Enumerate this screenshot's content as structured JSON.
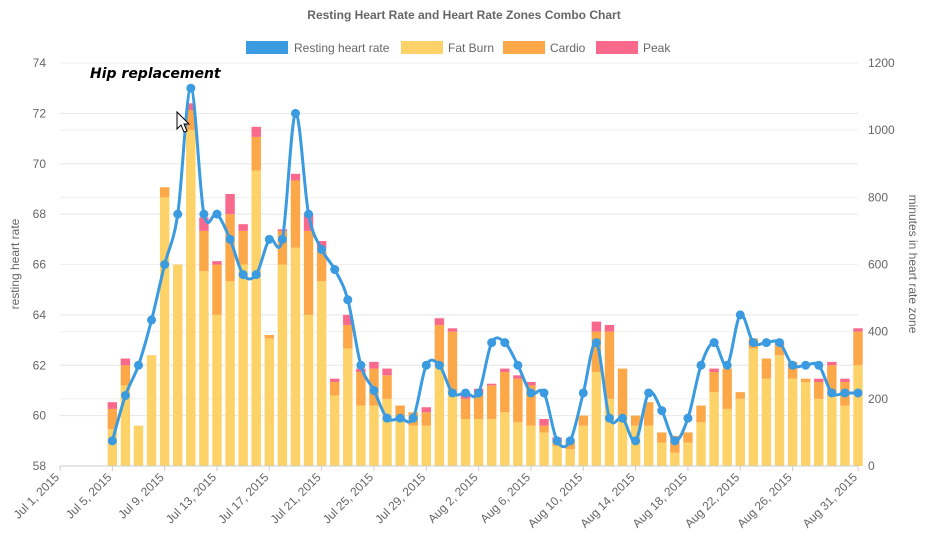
{
  "chart_data": {
    "type": "bar",
    "title": "Resting Heart Rate and Heart Rate Zones Combo Chart",
    "ylabel_left": "resting heart rate",
    "ylabel_right": "minutes in heart rate zone",
    "ylim_left": [
      58,
      74
    ],
    "ylim_right": [
      0,
      1200
    ],
    "yticks_left": [
      "58",
      "60",
      "62",
      "64",
      "66",
      "68",
      "70",
      "72",
      "74"
    ],
    "yticks_right": [
      "0",
      "200",
      "400",
      "600",
      "800",
      "1000",
      "1200"
    ],
    "xticks": [
      "Jul 1, 2015",
      "Jul 5, 2015",
      "Jul 9, 2015",
      "Jul 13, 2015",
      "Jul 17, 2015",
      "Jul 21, 2015",
      "Jul 25, 2015",
      "Jul 29, 2015",
      "Aug 2, 2015",
      "Aug 6, 2015",
      "Aug 10, 2015",
      "Aug 14, 2015",
      "Aug 18, 2015",
      "Aug 22, 2015",
      "Aug 26, 2015",
      "Aug 31, 2015"
    ],
    "x_first": "2015-07-01",
    "x_last": "2015-08-31",
    "annotation": {
      "text": "Hip replacement",
      "date": "2015-07-11"
    },
    "legend": [
      {
        "name": "Resting heart rate",
        "color": "#3a9be0"
      },
      {
        "name": "Fat Burn",
        "color": "#fdd268"
      },
      {
        "name": "Cardio",
        "color": "#fca849"
      },
      {
        "name": "Peak",
        "color": "#f9698c"
      }
    ],
    "legend_position": "top",
    "grid": true,
    "dates": [
      "2015-07-05",
      "2015-07-06",
      "2015-07-07",
      "2015-07-08",
      "2015-07-09",
      "2015-07-10",
      "2015-07-11",
      "2015-07-12",
      "2015-07-13",
      "2015-07-14",
      "2015-07-15",
      "2015-07-16",
      "2015-07-17",
      "2015-07-18",
      "2015-07-19",
      "2015-07-20",
      "2015-07-21",
      "2015-07-22",
      "2015-07-23",
      "2015-07-24",
      "2015-07-25",
      "2015-07-26",
      "2015-07-27",
      "2015-07-28",
      "2015-07-29",
      "2015-07-30",
      "2015-07-31",
      "2015-08-01",
      "2015-08-02",
      "2015-08-03",
      "2015-08-04",
      "2015-08-05",
      "2015-08-06",
      "2015-08-07",
      "2015-08-08",
      "2015-08-09",
      "2015-08-10",
      "2015-08-11",
      "2015-08-12",
      "2015-08-13",
      "2015-08-14",
      "2015-08-15",
      "2015-08-16",
      "2015-08-17",
      "2015-08-18",
      "2015-08-19",
      "2015-08-20",
      "2015-08-21",
      "2015-08-22",
      "2015-08-23",
      "2015-08-24",
      "2015-08-25",
      "2015-08-26",
      "2015-08-27",
      "2015-08-28",
      "2015-08-29",
      "2015-08-30",
      "2015-08-31"
    ],
    "series": [
      {
        "name": "Resting heart rate",
        "type": "line",
        "axis": "left",
        "values": [
          59,
          60.8,
          62,
          63.8,
          66,
          68,
          73,
          68,
          68,
          67,
          65.6,
          65.6,
          67,
          67,
          72,
          68,
          66.6,
          65.8,
          64.6,
          62,
          61,
          59.9,
          59.9,
          59.9,
          62,
          62,
          60.9,
          60.9,
          60.9,
          62.9,
          62.9,
          62,
          60.9,
          60.9,
          59,
          59,
          60.9,
          62.9,
          59.9,
          59.9,
          59,
          60.9,
          60.2,
          59,
          59.9,
          62,
          62.9,
          62,
          64,
          62.9,
          62.9,
          62.9,
          62,
          62,
          62,
          60.9,
          60.9,
          60.9
        ]
      },
      {
        "name": "Fat Burn",
        "type": "bar",
        "axis": "right",
        "values": [
          110,
          240,
          120,
          330,
          800,
          600,
          1000,
          580,
          450,
          550,
          600,
          880,
          380,
          600,
          650,
          450,
          550,
          210,
          350,
          180,
          180,
          200,
          140,
          120,
          120,
          300,
          220,
          140,
          140,
          140,
          160,
          130,
          120,
          100,
          60,
          50,
          120,
          280,
          200,
          150,
          120,
          120,
          70,
          40,
          70,
          130,
          220,
          170,
          200,
          350,
          260,
          330,
          260,
          250,
          200,
          210,
          180,
          300
        ]
      },
      {
        "name": "Cardio",
        "type": "bar",
        "axis": "right",
        "values": [
          60,
          60,
          0,
          0,
          30,
          0,
          60,
          120,
          150,
          200,
          100,
          100,
          10,
          100,
          200,
          250,
          100,
          40,
          70,
          100,
          110,
          70,
          40,
          40,
          40,
          120,
          180,
          60,
          80,
          100,
          120,
          130,
          120,
          20,
          10,
          30,
          30,
          120,
          200,
          140,
          30,
          70,
          30,
          50,
          30,
          50,
          60,
          120,
          20,
          30,
          60,
          40,
          50,
          10,
          50,
          90,
          70,
          100
        ]
      },
      {
        "name": "Peak",
        "type": "bar",
        "axis": "right",
        "values": [
          20,
          20,
          0,
          0,
          0,
          0,
          20,
          40,
          10,
          60,
          20,
          30,
          0,
          5,
          20,
          50,
          20,
          10,
          30,
          10,
          20,
          20,
          0,
          0,
          15,
          20,
          10,
          10,
          10,
          5,
          10,
          10,
          10,
          20,
          15,
          0,
          0,
          30,
          20,
          0,
          0,
          0,
          0,
          0,
          0,
          0,
          10,
          0,
          0,
          0,
          0,
          0,
          0,
          0,
          10,
          10,
          10,
          10
        ]
      }
    ]
  }
}
